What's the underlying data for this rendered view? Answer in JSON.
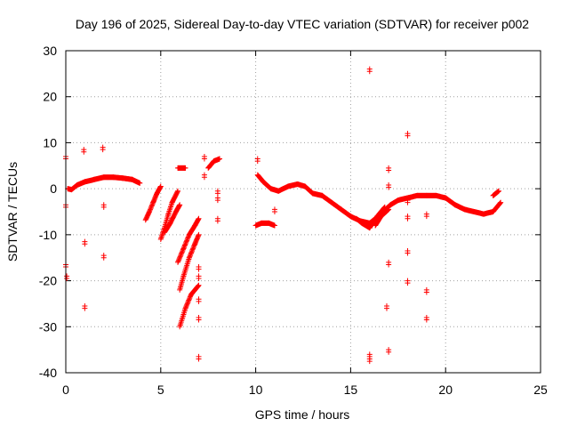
{
  "chart_data": {
    "type": "scatter",
    "title": "Day 196 of 2025, Sidereal Day-to-day VTEC variation (SDTVAR) for receiver p002",
    "xlabel": "GPS time / hours",
    "ylabel": "SDTVAR / TECUs",
    "xlim": [
      0,
      25
    ],
    "ylim": [
      -40,
      30
    ],
    "xticks": [
      0,
      5,
      10,
      15,
      20,
      25
    ],
    "yticks": [
      -40,
      -30,
      -20,
      -10,
      0,
      10,
      20,
      30
    ],
    "grid": true,
    "marker": "+",
    "color": "#ff0000",
    "series": [
      {
        "name": "SDTVAR",
        "trend_segments": [
          [
            [
              0.1,
              0.0
            ],
            [
              0.3,
              -0.2
            ],
            [
              0.6,
              0.8
            ],
            [
              1.0,
              1.5
            ],
            [
              1.5,
              2.0
            ],
            [
              2.0,
              2.5
            ],
            [
              2.5,
              2.5
            ],
            [
              3.0,
              2.3
            ],
            [
              3.5,
              2.0
            ],
            [
              3.9,
              1.2
            ]
          ],
          [
            [
              4.2,
              -6.8
            ],
            [
              4.4,
              -5.0
            ],
            [
              4.6,
              -3.0
            ],
            [
              4.8,
              -1.0
            ],
            [
              5.0,
              0.5
            ]
          ],
          [
            [
              5.0,
              -11.0
            ],
            [
              5.2,
              -8.5
            ],
            [
              5.4,
              -5.5
            ],
            [
              5.6,
              -3.0
            ],
            [
              5.9,
              -0.5
            ]
          ],
          [
            [
              5.2,
              -9.5
            ],
            [
              5.5,
              -7.5
            ],
            [
              5.8,
              -5.0
            ],
            [
              6.0,
              -3.5
            ]
          ],
          [
            [
              5.9,
              -16.0
            ],
            [
              6.2,
              -13.0
            ],
            [
              6.5,
              -10.0
            ],
            [
              6.8,
              -8.0
            ],
            [
              7.0,
              -6.5
            ]
          ],
          [
            [
              6.0,
              -22.0
            ],
            [
              6.2,
              -19.0
            ],
            [
              6.5,
              -15.0
            ],
            [
              6.8,
              -12.0
            ],
            [
              7.0,
              -10.0
            ]
          ],
          [
            [
              6.0,
              -30.0
            ],
            [
              6.3,
              -26.0
            ],
            [
              6.6,
              -23.0
            ],
            [
              7.0,
              -21.0
            ]
          ],
          [
            [
              5.9,
              4.5
            ],
            [
              6.3,
              4.5
            ]
          ],
          [
            [
              7.5,
              4.5
            ],
            [
              7.8,
              6.0
            ],
            [
              8.1,
              6.5
            ]
          ],
          [
            [
              10.1,
              3.0
            ],
            [
              10.4,
              1.5
            ],
            [
              10.8,
              0.0
            ],
            [
              11.2,
              -0.5
            ],
            [
              11.7,
              0.5
            ],
            [
              12.2,
              1.0
            ],
            [
              12.6,
              0.5
            ],
            [
              13.0,
              -1.0
            ],
            [
              13.5,
              -1.5
            ],
            [
              14.0,
              -3.0
            ],
            [
              14.5,
              -4.5
            ],
            [
              15.0,
              -6.0
            ],
            [
              15.5,
              -7.0
            ],
            [
              16.0,
              -7.5
            ],
            [
              16.3,
              -6.5
            ],
            [
              16.7,
              -5.0
            ],
            [
              17.1,
              -3.5
            ],
            [
              17.5,
              -2.5
            ],
            [
              18.0,
              -2.0
            ],
            [
              18.5,
              -1.5
            ],
            [
              19.0,
              -1.5
            ],
            [
              19.5,
              -1.5
            ],
            [
              20.0,
              -2.0
            ],
            [
              20.5,
              -3.5
            ],
            [
              21.0,
              -4.5
            ],
            [
              21.5,
              -5.0
            ],
            [
              22.0,
              -5.5
            ],
            [
              22.5,
              -5.0
            ],
            [
              22.9,
              -3.0
            ]
          ],
          [
            [
              10.0,
              -8.0
            ],
            [
              10.3,
              -7.5
            ],
            [
              10.7,
              -7.5
            ],
            [
              11.0,
              -8.0
            ]
          ],
          [
            [
              15.3,
              -6.5
            ],
            [
              15.6,
              -7.5
            ],
            [
              16.0,
              -8.5
            ],
            [
              16.4,
              -6.0
            ],
            [
              16.8,
              -4.0
            ]
          ],
          [
            [
              16.3,
              -8.0
            ],
            [
              16.6,
              -6.0
            ],
            [
              17.0,
              -4.5
            ]
          ],
          [
            [
              22.5,
              -1.5
            ],
            [
              22.8,
              -0.5
            ]
          ]
        ],
        "isolated_points": [
          [
            0.0,
            6.5
          ],
          [
            0.0,
            -4.0
          ],
          [
            0.0,
            -17.0
          ],
          [
            0.05,
            -19.5
          ],
          [
            0.95,
            8.0
          ],
          [
            1.0,
            -12.0
          ],
          [
            1.0,
            -26.0
          ],
          [
            1.95,
            8.5
          ],
          [
            2.0,
            -4.0
          ],
          [
            2.0,
            -15.0
          ],
          [
            7.0,
            -37.0
          ],
          [
            7.0,
            -28.5
          ],
          [
            7.0,
            -24.5
          ],
          [
            7.0,
            -19.5
          ],
          [
            7.0,
            -17.5
          ],
          [
            7.3,
            6.5
          ],
          [
            7.3,
            2.5
          ],
          [
            8.0,
            -1.0
          ],
          [
            8.0,
            -2.5
          ],
          [
            8.0,
            -7.0
          ],
          [
            10.1,
            6.0
          ],
          [
            11.0,
            -5.0
          ],
          [
            16.0,
            25.5
          ],
          [
            16.0,
            -36.5
          ],
          [
            16.0,
            -37.5
          ],
          [
            17.0,
            4.0
          ],
          [
            17.0,
            0.3
          ],
          [
            17.0,
            -16.5
          ],
          [
            16.9,
            -26.0
          ],
          [
            17.0,
            -35.5
          ],
          [
            18.0,
            11.5
          ],
          [
            18.0,
            -6.5
          ],
          [
            18.0,
            -14.0
          ],
          [
            18.0,
            -20.5
          ],
          [
            18.0,
            -3.0
          ],
          [
            19.0,
            -22.5
          ],
          [
            19.0,
            -28.5
          ],
          [
            19.0,
            -6.0
          ]
        ]
      }
    ]
  }
}
